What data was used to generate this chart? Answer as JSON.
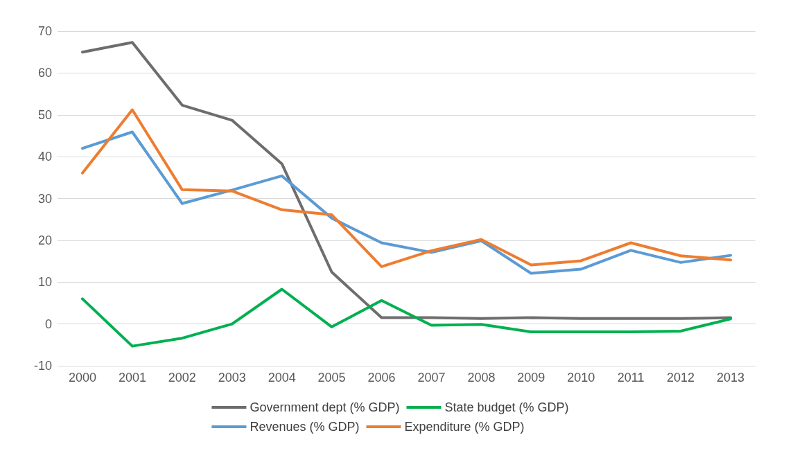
{
  "chart_data": {
    "type": "line",
    "categories": [
      "2000",
      "2001",
      "2002",
      "2003",
      "2004",
      "2005",
      "2006",
      "2007",
      "2008",
      "2009",
      "2010",
      "2011",
      "2012",
      "2013"
    ],
    "series": [
      {
        "name": "Government dept (% GDP)",
        "color": "#6d6d6d",
        "values": [
          65,
          67.3,
          52.3,
          48.7,
          38.3,
          12.4,
          1.5,
          1.5,
          1.3,
          1.5,
          1.3,
          1.3,
          1.3,
          1.5
        ]
      },
      {
        "name": "State budget (% GDP)",
        "color": "#00b050",
        "values": [
          6,
          -5.3,
          -3.4,
          0,
          8.3,
          -0.7,
          5.6,
          -0.3,
          -0.1,
          -1.9,
          -1.9,
          -1.9,
          -1.7,
          1.2
        ]
      },
      {
        "name": "Revenues (% GDP)",
        "color": "#5b9bd5",
        "values": [
          42,
          45.9,
          28.8,
          32,
          35.4,
          25.3,
          19.4,
          17.1,
          19.9,
          12.1,
          13.1,
          17.6,
          14.7,
          16.4
        ]
      },
      {
        "name": "Expenditure (% GDP)",
        "color": "#ed7d31",
        "values": [
          36.1,
          51.2,
          32.1,
          31.8,
          27.3,
          26.1,
          13.7,
          17.5,
          20.2,
          14.1,
          15.1,
          19.4,
          16.3,
          15.3
        ]
      }
    ],
    "ylim": [
      -10,
      70
    ],
    "yticks": [
      -10,
      0,
      10,
      20,
      30,
      40,
      50,
      60,
      70
    ],
    "grid": "y",
    "legend": "bottom",
    "marker": "none",
    "line_style": "solid"
  }
}
